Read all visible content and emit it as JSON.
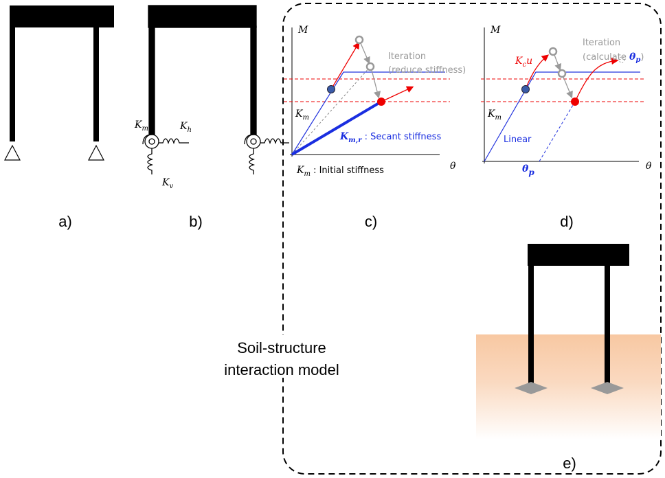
{
  "panels": {
    "a": {
      "label": "a)"
    },
    "b": {
      "label": "b)",
      "rotational": {
        "symbol": "K",
        "sub": "m"
      },
      "horizontal": {
        "symbol": "K",
        "sub": "h"
      },
      "vertical": {
        "symbol": "K",
        "sub": "v"
      }
    },
    "c": {
      "label": "c)",
      "y_axis": "M",
      "x_axis": "θ",
      "iteration": "Iteration",
      "iteration_note": "(reduce stiffness)",
      "slope": {
        "symbol": "K",
        "sub": "m"
      },
      "secant": {
        "symbol": "K",
        "sub": "m,r",
        "text": " : Secant stiffness"
      },
      "initial": {
        "symbol": "K",
        "sub": "m",
        "text": " : Initial stiffness"
      }
    },
    "d": {
      "label": "d)",
      "y_axis": "M",
      "x_axis": "θ",
      "iteration": "Iteration",
      "note_open": "(calculate ",
      "note_symbol": {
        "symbol": "θ",
        "sub": "p"
      },
      "note_close": ")",
      "tangent": {
        "symbol": "K",
        "sub": "c",
        "after": "u"
      },
      "slope": {
        "symbol": "K",
        "sub": "m"
      },
      "linear": "Linear",
      "plastic": {
        "symbol": "θ",
        "sub": "p"
      }
    },
    "e": {
      "label": "e)"
    }
  },
  "model_label": [
    "Soil-structure",
    "interaction model"
  ]
}
